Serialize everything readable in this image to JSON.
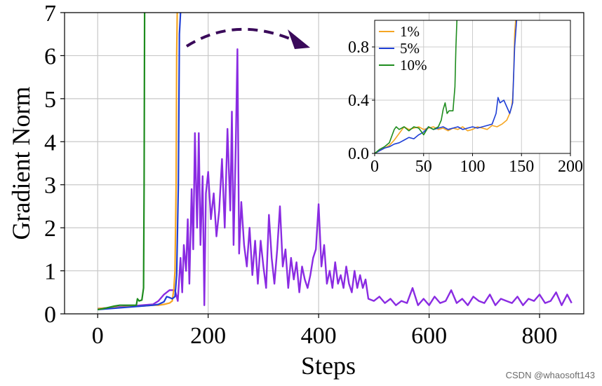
{
  "chart_data": {
    "main": {
      "type": "line",
      "xlabel": "Steps",
      "ylabel": "Gradient Norm",
      "xlim": [
        -60,
        880
      ],
      "ylim": [
        0,
        7
      ],
      "xticks": [
        0,
        200,
        400,
        600,
        800
      ],
      "yticks": [
        0,
        1,
        2,
        3,
        4,
        5,
        6,
        7
      ],
      "grid": true,
      "series": [
        {
          "color": "#8a2be2",
          "x": [
            0,
            20,
            40,
            60,
            80,
            100,
            110,
            120,
            130,
            140,
            145,
            148,
            150,
            153,
            156,
            160,
            163,
            166,
            170,
            173,
            176,
            180,
            183,
            186,
            190,
            193,
            196,
            200,
            205,
            210,
            215,
            220,
            225,
            230,
            235,
            240,
            243,
            246,
            250,
            253,
            256,
            260,
            265,
            270,
            275,
            280,
            285,
            290,
            295,
            300,
            305,
            310,
            315,
            320,
            325,
            330,
            335,
            340,
            345,
            350,
            355,
            360,
            365,
            370,
            375,
            380,
            385,
            390,
            395,
            400,
            405,
            410,
            415,
            420,
            425,
            430,
            435,
            440,
            445,
            450,
            455,
            460,
            465,
            470,
            475,
            480,
            485,
            490,
            500,
            510,
            520,
            530,
            540,
            550,
            560,
            570,
            580,
            590,
            600,
            610,
            620,
            630,
            640,
            650,
            660,
            670,
            680,
            690,
            700,
            710,
            720,
            730,
            740,
            750,
            760,
            770,
            780,
            790,
            800,
            810,
            820,
            830,
            840,
            850,
            858
          ],
          "y": [
            0.12,
            0.14,
            0.16,
            0.18,
            0.2,
            0.22,
            0.3,
            0.45,
            0.55,
            0.55,
            0.3,
            0.9,
            1.3,
            0.5,
            1.6,
            1.0,
            2.2,
            0.7,
            2.9,
            1.5,
            4.2,
            2.0,
            4.2,
            1.6,
            3.2,
            0.2,
            2.8,
            3.3,
            2.2,
            2.8,
            1.8,
            2.4,
            3.6,
            2.0,
            4.3,
            2.4,
            4.7,
            1.6,
            3.9,
            6.15,
            1.4,
            2.6,
            1.6,
            1.1,
            2.0,
            0.9,
            1.7,
            0.7,
            1.7,
            1.1,
            0.6,
            2.3,
            1.3,
            0.7,
            1.5,
            2.5,
            1.1,
            1.5,
            0.6,
            1.3,
            0.8,
            1.2,
            0.5,
            1.1,
            0.8,
            0.6,
            0.9,
            1.3,
            1.5,
            2.55,
            1.1,
            1.6,
            0.7,
            1.0,
            0.6,
            1.2,
            0.7,
            0.9,
            0.6,
            1.1,
            0.7,
            0.5,
            1.0,
            0.6,
            0.9,
            0.6,
            0.8,
            0.35,
            0.3,
            0.4,
            0.25,
            0.35,
            0.2,
            0.3,
            0.25,
            0.6,
            0.2,
            0.35,
            0.2,
            0.4,
            0.25,
            0.3,
            0.55,
            0.25,
            0.35,
            0.2,
            0.4,
            0.3,
            0.25,
            0.45,
            0.2,
            0.35,
            0.3,
            0.25,
            0.4,
            0.2,
            0.35,
            0.3,
            0.45,
            0.25,
            0.3,
            0.5,
            0.2,
            0.45,
            0.25
          ]
        },
        {
          "color": "#f5a623",
          "x": [
            0,
            20,
            40,
            60,
            80,
            100,
            110,
            120,
            130,
            135,
            138,
            140,
            142,
            143,
            144,
            145
          ],
          "y": [
            0.12,
            0.14,
            0.15,
            0.17,
            0.18,
            0.2,
            0.2,
            0.22,
            0.25,
            0.3,
            0.6,
            1.0,
            3.0,
            6.0,
            7.0,
            7.0
          ]
        },
        {
          "color": "#1f3fd6",
          "x": [
            0,
            20,
            40,
            60,
            80,
            100,
            110,
            120,
            125,
            130,
            135,
            140,
            143,
            146,
            148,
            150
          ],
          "y": [
            0.1,
            0.12,
            0.14,
            0.16,
            0.18,
            0.2,
            0.22,
            0.28,
            0.4,
            0.38,
            0.35,
            0.4,
            0.9,
            3.0,
            6.5,
            7.0
          ]
        },
        {
          "color": "#1e8c1e",
          "x": [
            0,
            10,
            20,
            30,
            40,
            50,
            60,
            70,
            72,
            75,
            80,
            83,
            84,
            85
          ],
          "y": [
            0.1,
            0.12,
            0.15,
            0.18,
            0.2,
            0.2,
            0.2,
            0.2,
            0.35,
            0.3,
            0.32,
            0.6,
            3.0,
            7.0
          ]
        }
      ]
    },
    "inset": {
      "type": "line",
      "xlim": [
        0,
        200
      ],
      "ylim": [
        0,
        1.0
      ],
      "xticks": [
        0,
        50,
        100,
        150,
        200
      ],
      "yticks": [
        0.0,
        0.4,
        0.8
      ],
      "ytick_labels": [
        "0.0",
        "0.4",
        "0.8"
      ],
      "grid": true,
      "legend_position": "top-left",
      "series": [
        {
          "name": "1%",
          "color": "#f5a623",
          "x": [
            0,
            5,
            10,
            15,
            20,
            25,
            30,
            35,
            40,
            45,
            50,
            55,
            60,
            65,
            70,
            75,
            80,
            85,
            90,
            95,
            100,
            105,
            110,
            115,
            120,
            125,
            130,
            135,
            138,
            140,
            141,
            142,
            143,
            144
          ],
          "y": [
            0.0,
            0.02,
            0.04,
            0.06,
            0.1,
            0.15,
            0.2,
            0.18,
            0.19,
            0.2,
            0.18,
            0.19,
            0.2,
            0.18,
            0.19,
            0.17,
            0.19,
            0.18,
            0.2,
            0.17,
            0.18,
            0.2,
            0.19,
            0.18,
            0.21,
            0.2,
            0.22,
            0.25,
            0.3,
            0.35,
            0.42,
            0.6,
            0.9,
            1.0
          ]
        },
        {
          "name": "5%",
          "color": "#1f3fd6",
          "x": [
            0,
            5,
            10,
            15,
            20,
            25,
            30,
            35,
            40,
            45,
            50,
            55,
            60,
            65,
            70,
            75,
            80,
            85,
            90,
            95,
            100,
            105,
            110,
            115,
            120,
            124,
            126,
            128,
            132,
            135,
            138,
            141,
            143,
            145
          ],
          "y": [
            0.0,
            0.02,
            0.04,
            0.05,
            0.07,
            0.08,
            0.1,
            0.12,
            0.11,
            0.14,
            0.16,
            0.2,
            0.18,
            0.19,
            0.2,
            0.18,
            0.19,
            0.2,
            0.18,
            0.19,
            0.2,
            0.19,
            0.2,
            0.21,
            0.22,
            0.3,
            0.42,
            0.38,
            0.4,
            0.35,
            0.3,
            0.38,
            0.8,
            1.0
          ]
        },
        {
          "name": "10%",
          "color": "#1e8c1e",
          "x": [
            0,
            5,
            10,
            15,
            18,
            20,
            22,
            25,
            30,
            35,
            40,
            45,
            50,
            55,
            60,
            65,
            68,
            70,
            72,
            74,
            76,
            80,
            82,
            83,
            84
          ],
          "y": [
            0.0,
            0.03,
            0.05,
            0.08,
            0.14,
            0.18,
            0.2,
            0.18,
            0.2,
            0.17,
            0.2,
            0.19,
            0.14,
            0.2,
            0.18,
            0.2,
            0.25,
            0.33,
            0.38,
            0.3,
            0.32,
            0.32,
            0.5,
            0.8,
            1.0
          ]
        }
      ]
    },
    "annotation": {
      "type": "dashed-arrow",
      "color": "#3a0a5a"
    }
  },
  "watermark": "CSDN @whaosoft143"
}
